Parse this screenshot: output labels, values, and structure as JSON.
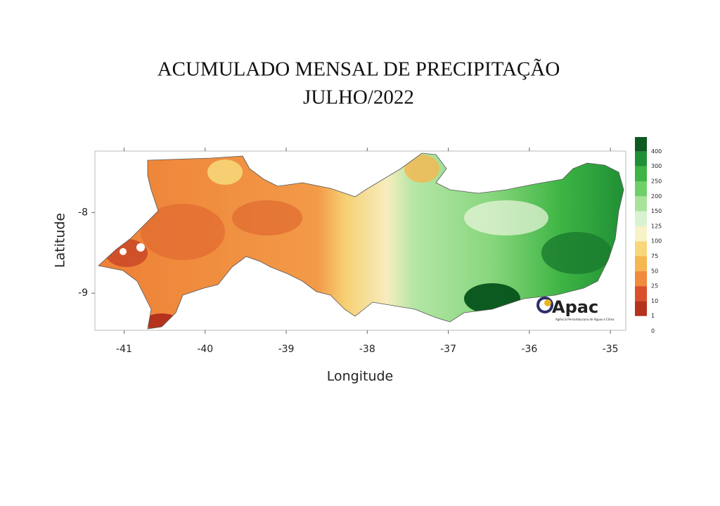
{
  "title": [
    "ACUMULADO MENSAL DE PRECIPITAÇÃO",
    "JULHO/2022"
  ],
  "map": {
    "xlabel": "Longitude",
    "ylabel": "Latitude",
    "xlim": [
      -41.36,
      -34.81
    ],
    "ylim": [
      -9.46,
      -7.24
    ],
    "xticks": [
      -41,
      -40,
      -39,
      -38,
      -37,
      -36,
      -35
    ],
    "yticks": [
      -8,
      -9
    ]
  },
  "legend": {
    "levels": [
      0,
      1,
      10,
      25,
      50,
      75,
      100,
      125,
      150,
      200,
      250,
      300,
      400
    ],
    "colors": [
      "#b5321c",
      "#d9502a",
      "#f08a3c",
      "#f6b650",
      "#f7d77a",
      "#f7f2c8",
      "#d9f2d2",
      "#a8e39a",
      "#6fd06a",
      "#3db443",
      "#1f8f35",
      "#0d5a20"
    ]
  },
  "logo": {
    "name": "Apac",
    "subtitle": "Agência Pernambucana de Águas e Clima"
  }
}
